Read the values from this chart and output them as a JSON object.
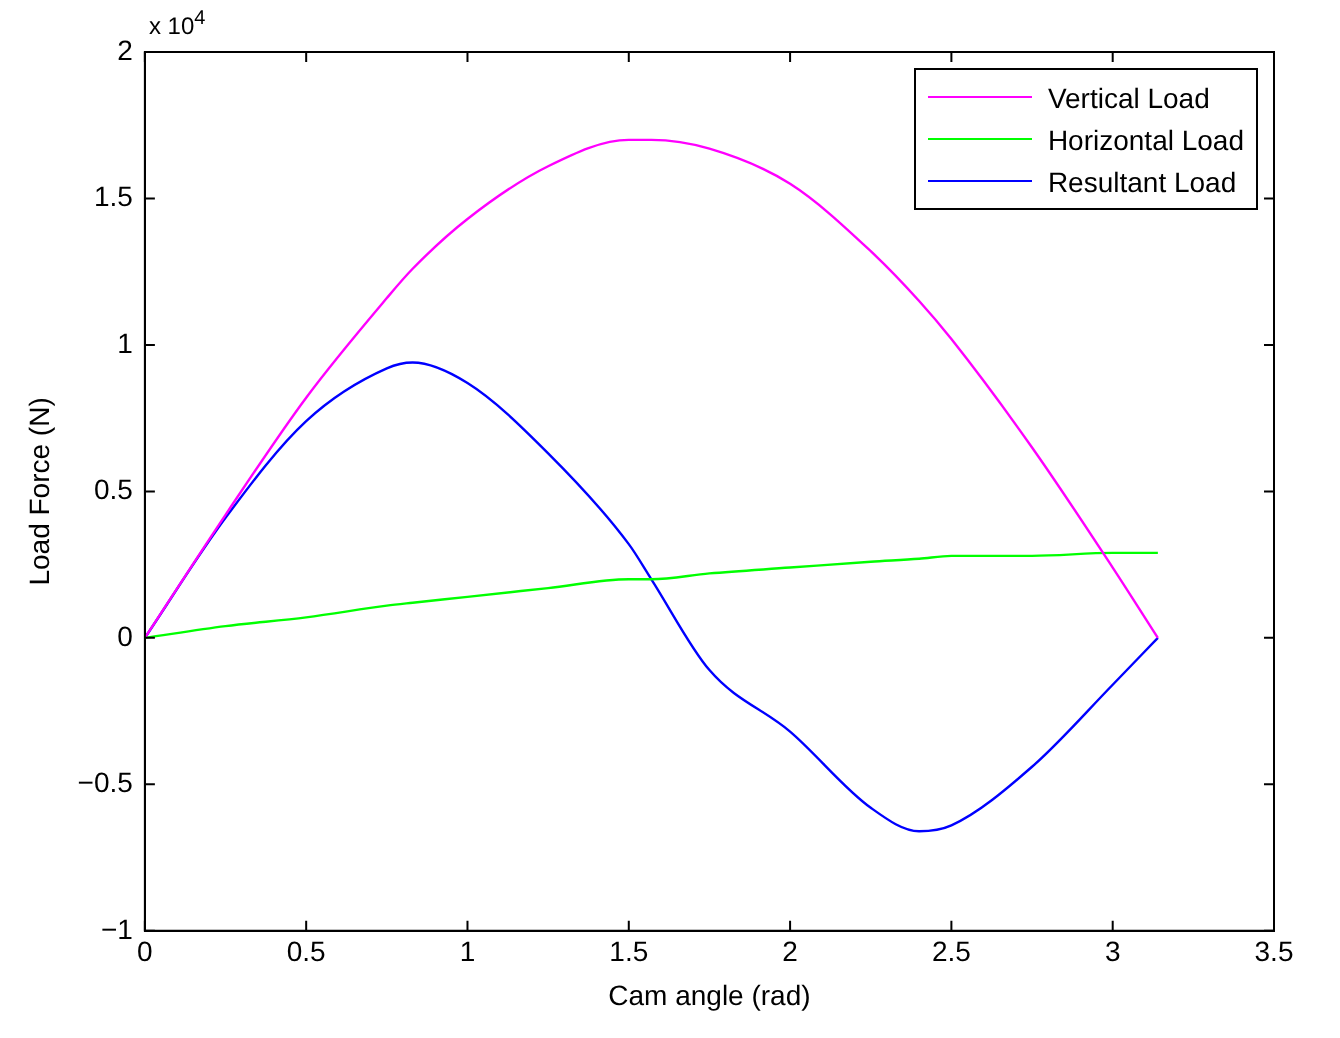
{
  "chart_data": {
    "type": "line",
    "xlabel": "Cam angle (rad)",
    "ylabel": "Load Force (N)",
    "annotations": [
      "x 10$^{4}$"
    ],
    "x": [
      0,
      0.25,
      0.5,
      0.75,
      0.83,
      1.0,
      1.25,
      1.5,
      1.57,
      1.75,
      2.0,
      2.25,
      2.4,
      2.5,
      2.75,
      3.0,
      3.14
    ],
    "series": [
      {
        "name": "Vertical Load",
        "color": "#ff00ff",
        "values": [
          0,
          0.42,
          0.82,
          1.16,
          1.26,
          1.43,
          1.61,
          1.7,
          1.7,
          1.67,
          1.55,
          1.32,
          1.15,
          1.02,
          0.65,
          0.24,
          0
        ]
      },
      {
        "name": "Horizontal Load",
        "color": "#00ff00",
        "values": [
          0,
          0.04,
          0.07,
          0.11,
          0.12,
          0.14,
          0.17,
          0.2,
          0.2,
          0.22,
          0.24,
          0.26,
          0.27,
          0.28,
          0.28,
          0.29,
          0.29
        ]
      },
      {
        "name": "Resultant Load",
        "color": "#0000ff",
        "values": [
          0,
          0.41,
          0.74,
          0.92,
          0.94,
          0.87,
          0.63,
          0.32,
          0.2,
          -0.11,
          -0.32,
          -0.58,
          -0.66,
          -0.64,
          -0.44,
          -0.16,
          0
        ]
      }
    ],
    "xlim": [
      0,
      3.5
    ],
    "xticks": [
      0,
      0.5,
      1,
      1.5,
      2,
      2.5,
      3,
      3.5
    ],
    "ylim": [
      -1,
      2
    ],
    "yticks": [
      {
        "value": -1,
        "label": "−1"
      },
      {
        "value": -0.5,
        "label": "−0.5"
      },
      0,
      0.5,
      1,
      1.5,
      2
    ],
    "grid": false,
    "legend": "top right",
    "marker": "none",
    "line_style": "solid"
  }
}
